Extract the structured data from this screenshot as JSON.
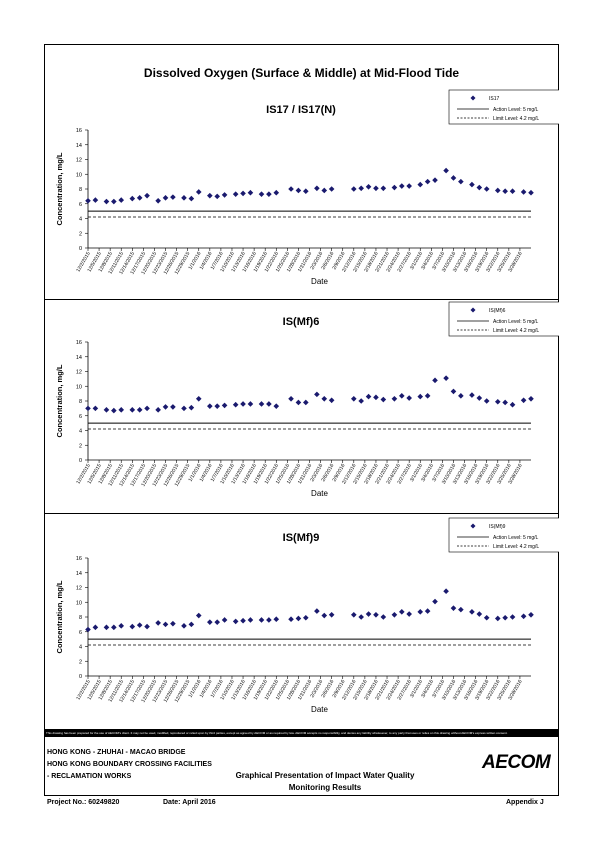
{
  "main_title": "Dissolved Oxygen (Surface & Middle) at Mid-Flood Tide",
  "disclaimer": "This drawing has been prepared for the use of AECOM's client. It may not be used, modified, reproduced or relied upon by third parties, except as agreed by AECOM or as required by law. AECOM accepts no responsibility, and denies any liability whatsoever, to any party that uses or relies on this drawing without AECOM's express written consent.",
  "footer": {
    "project_line1": "HONG KONG - ZHUHAI - MACAO BRIDGE",
    "project_line2": "HONG KONG BOUNDARY CROSSING FACILITIES",
    "project_line3": "- RECLAMATION WORKS",
    "doc_title_line1": "Graphical Presentation of Impact Water Quality",
    "doc_title_line2": "Monitoring Results",
    "project_no": "Project No.: 60249820",
    "date": "Date: April 2016",
    "appendix": "Appendix J",
    "logo": "AECOM"
  },
  "chart_data": [
    {
      "type": "scatter",
      "title": "IS17 / IS17(N)",
      "xlabel": "Date",
      "ylabel": "Concentration, mg/L",
      "ylim": [
        0,
        16
      ],
      "yticks": [
        0,
        2,
        4,
        6,
        8,
        10,
        12,
        14,
        16
      ],
      "xlim": [
        "2015-12-02",
        "2016-03-31"
      ],
      "xticks": [
        "12/2/2015",
        "12/5/2015",
        "12/8/2015",
        "12/11/2015",
        "12/14/2015",
        "12/17/2015",
        "12/20/2015",
        "12/23/2015",
        "12/26/2015",
        "12/29/2015",
        "1/1/2016",
        "1/4/2016",
        "1/7/2016",
        "1/10/2016",
        "1/13/2016",
        "1/16/2016",
        "1/19/2016",
        "1/22/2016",
        "1/25/2016",
        "1/28/2016",
        "1/31/2016",
        "2/3/2016",
        "2/6/2016",
        "2/9/2016",
        "2/12/2016",
        "2/15/2016",
        "2/18/2016",
        "2/21/2016",
        "2/24/2016",
        "2/27/2016",
        "3/1/2016",
        "3/4/2016",
        "3/7/2016",
        "3/10/2016",
        "3/13/2016",
        "3/16/2016",
        "3/19/2016",
        "3/22/2016",
        "3/25/2016",
        "3/28/2016"
      ],
      "series": [
        {
          "name": "IS17",
          "color": "#1a1a6e",
          "marker": "diamond",
          "x": [
            "2015-12-02",
            "2015-12-04",
            "2015-12-07",
            "2015-12-09",
            "2015-12-11",
            "2015-12-14",
            "2015-12-16",
            "2015-12-18",
            "2015-12-21",
            "2015-12-23",
            "2015-12-25",
            "2015-12-28",
            "2015-12-30",
            "2016-01-01",
            "2016-01-04",
            "2016-01-06",
            "2016-01-08",
            "2016-01-11",
            "2016-01-13",
            "2016-01-15",
            "2016-01-18",
            "2016-01-20",
            "2016-01-22",
            "2016-01-26",
            "2016-01-28",
            "2016-01-30",
            "2016-02-02",
            "2016-02-04",
            "2016-02-06",
            "2016-02-12",
            "2016-02-14",
            "2016-02-16",
            "2016-02-18",
            "2016-02-20",
            "2016-02-23",
            "2016-02-25",
            "2016-02-27",
            "2016-03-01",
            "2016-03-03",
            "2016-03-05",
            "2016-03-08",
            "2016-03-10",
            "2016-03-12",
            "2016-03-15",
            "2016-03-17",
            "2016-03-19",
            "2016-03-22",
            "2016-03-24",
            "2016-03-26",
            "2016-03-29",
            "2016-03-31"
          ],
          "y": [
            6.4,
            6.5,
            6.3,
            6.3,
            6.5,
            6.7,
            6.8,
            7.1,
            6.4,
            6.8,
            6.9,
            6.8,
            6.7,
            7.6,
            7.1,
            7.0,
            7.2,
            7.3,
            7.4,
            7.5,
            7.3,
            7.3,
            7.5,
            8.0,
            7.8,
            7.7,
            8.1,
            7.8,
            8.0,
            8.0,
            8.1,
            8.3,
            8.1,
            8.1,
            8.2,
            8.4,
            8.4,
            8.6,
            9.0,
            9.2,
            10.5,
            9.5,
            9.0,
            8.6,
            8.2,
            8.0,
            7.8,
            7.7,
            7.7,
            7.6,
            7.5
          ]
        }
      ],
      "lines": [
        {
          "name": "Action Level: 5 mg/L",
          "value": 5,
          "style": "solid"
        },
        {
          "name": "Limit Level: 4.2 mg/L",
          "value": 4.2,
          "style": "dashed"
        }
      ],
      "grid": false,
      "legend": "top-right"
    },
    {
      "type": "scatter",
      "title": "IS(Mf)6",
      "xlabel": "Date",
      "ylabel": "Concentration, mg/L",
      "ylim": [
        0,
        16
      ],
      "yticks": [
        0,
        2,
        4,
        6,
        8,
        10,
        12,
        14,
        16
      ],
      "xlim": [
        "2015-12-02",
        "2016-03-31"
      ],
      "xticks": [
        "12/2/2015",
        "12/5/2015",
        "12/8/2015",
        "12/11/2015",
        "12/14/2015",
        "12/17/2015",
        "12/20/2015",
        "12/23/2015",
        "12/26/2015",
        "12/29/2015",
        "1/1/2016",
        "1/4/2016",
        "1/7/2016",
        "1/10/2016",
        "1/13/2016",
        "1/16/2016",
        "1/19/2016",
        "1/22/2016",
        "1/25/2016",
        "1/28/2016",
        "1/31/2016",
        "2/3/2016",
        "2/6/2016",
        "2/9/2016",
        "2/12/2016",
        "2/15/2016",
        "2/18/2016",
        "2/21/2016",
        "2/24/2016",
        "2/27/2016",
        "3/1/2016",
        "3/4/2016",
        "3/7/2016",
        "3/10/2016",
        "3/13/2016",
        "3/16/2016",
        "3/19/2016",
        "3/22/2016",
        "3/25/2016",
        "3/28/2016"
      ],
      "series": [
        {
          "name": "IS(Mf)6",
          "color": "#1a1a6e",
          "marker": "diamond",
          "x": [
            "2015-12-02",
            "2015-12-04",
            "2015-12-07",
            "2015-12-09",
            "2015-12-11",
            "2015-12-14",
            "2015-12-16",
            "2015-12-18",
            "2015-12-21",
            "2015-12-23",
            "2015-12-25",
            "2015-12-28",
            "2015-12-30",
            "2016-01-01",
            "2016-01-04",
            "2016-01-06",
            "2016-01-08",
            "2016-01-11",
            "2016-01-13",
            "2016-01-15",
            "2016-01-18",
            "2016-01-20",
            "2016-01-22",
            "2016-01-26",
            "2016-01-28",
            "2016-01-30",
            "2016-02-02",
            "2016-02-04",
            "2016-02-06",
            "2016-02-12",
            "2016-02-14",
            "2016-02-16",
            "2016-02-18",
            "2016-02-20",
            "2016-02-23",
            "2016-02-25",
            "2016-02-27",
            "2016-03-01",
            "2016-03-03",
            "2016-03-05",
            "2016-03-08",
            "2016-03-10",
            "2016-03-12",
            "2016-03-15",
            "2016-03-17",
            "2016-03-19",
            "2016-03-22",
            "2016-03-24",
            "2016-03-26",
            "2016-03-29",
            "2016-03-31"
          ],
          "y": [
            7.0,
            7.0,
            6.8,
            6.7,
            6.8,
            6.8,
            6.8,
            7.0,
            6.8,
            7.2,
            7.2,
            7.0,
            7.1,
            8.3,
            7.3,
            7.3,
            7.4,
            7.5,
            7.6,
            7.6,
            7.6,
            7.6,
            7.3,
            8.3,
            7.8,
            7.8,
            8.9,
            8.3,
            8.1,
            8.3,
            8.0,
            8.6,
            8.5,
            8.2,
            8.3,
            8.7,
            8.4,
            8.6,
            8.7,
            10.8,
            11.1,
            9.3,
            8.7,
            8.8,
            8.4,
            8.0,
            7.9,
            7.8,
            7.5,
            8.1,
            8.3
          ]
        }
      ],
      "lines": [
        {
          "name": "Action Level: 5 mg/L",
          "value": 5,
          "style": "solid"
        },
        {
          "name": "Limit Level: 4.2 mg/L",
          "value": 4.2,
          "style": "dashed"
        }
      ],
      "grid": false,
      "legend": "top-right"
    },
    {
      "type": "scatter",
      "title": "IS(Mf)9",
      "xlabel": "Date",
      "ylabel": "Concentration, mg/L",
      "ylim": [
        0,
        16
      ],
      "yticks": [
        0,
        2,
        4,
        6,
        8,
        10,
        12,
        14,
        16
      ],
      "xlim": [
        "2015-12-02",
        "2016-03-31"
      ],
      "xticks": [
        "12/2/2015",
        "12/5/2015",
        "12/8/2015",
        "12/11/2015",
        "12/14/2015",
        "12/17/2015",
        "12/20/2015",
        "12/23/2015",
        "12/26/2015",
        "12/29/2015",
        "1/1/2016",
        "1/4/2016",
        "1/7/2016",
        "1/10/2016",
        "1/13/2016",
        "1/16/2016",
        "1/19/2016",
        "1/22/2016",
        "1/25/2016",
        "1/28/2016",
        "1/31/2016",
        "2/3/2016",
        "2/6/2016",
        "2/9/2016",
        "2/12/2016",
        "2/15/2016",
        "2/18/2016",
        "2/21/2016",
        "2/24/2016",
        "2/27/2016",
        "3/1/2016",
        "3/4/2016",
        "3/7/2016",
        "3/10/2016",
        "3/13/2016",
        "3/16/2016",
        "3/19/2016",
        "3/22/2016",
        "3/25/2016",
        "3/28/2016"
      ],
      "series": [
        {
          "name": "IS(Mf)9",
          "color": "#1a1a6e",
          "marker": "diamond",
          "x": [
            "2015-12-02",
            "2015-12-04",
            "2015-12-07",
            "2015-12-09",
            "2015-12-11",
            "2015-12-14",
            "2015-12-16",
            "2015-12-18",
            "2015-12-21",
            "2015-12-23",
            "2015-12-25",
            "2015-12-28",
            "2015-12-30",
            "2016-01-01",
            "2016-01-04",
            "2016-01-06",
            "2016-01-08",
            "2016-01-11",
            "2016-01-13",
            "2016-01-15",
            "2016-01-18",
            "2016-01-20",
            "2016-01-22",
            "2016-01-26",
            "2016-01-28",
            "2016-01-30",
            "2016-02-02",
            "2016-02-04",
            "2016-02-06",
            "2016-02-12",
            "2016-02-14",
            "2016-02-16",
            "2016-02-18",
            "2016-02-20",
            "2016-02-23",
            "2016-02-25",
            "2016-02-27",
            "2016-03-01",
            "2016-03-03",
            "2016-03-05",
            "2016-03-08",
            "2016-03-10",
            "2016-03-12",
            "2016-03-15",
            "2016-03-17",
            "2016-03-19",
            "2016-03-22",
            "2016-03-24",
            "2016-03-26",
            "2016-03-29",
            "2016-03-31"
          ],
          "y": [
            6.3,
            6.6,
            6.6,
            6.6,
            6.8,
            6.7,
            6.9,
            6.7,
            7.2,
            7.0,
            7.1,
            6.8,
            7.0,
            8.2,
            7.3,
            7.3,
            7.6,
            7.4,
            7.5,
            7.6,
            7.6,
            7.6,
            7.7,
            7.7,
            7.8,
            7.9,
            8.8,
            8.2,
            8.3,
            8.3,
            8.0,
            8.4,
            8.3,
            8.0,
            8.3,
            8.7,
            8.4,
            8.7,
            8.8,
            10.1,
            11.5,
            9.2,
            9.0,
            8.7,
            8.4,
            7.9,
            7.8,
            7.9,
            8.0,
            8.1,
            8.3
          ]
        }
      ],
      "lines": [
        {
          "name": "Action Level: 5 mg/L",
          "value": 5,
          "style": "solid"
        },
        {
          "name": "Limit Level: 4.2 mg/L",
          "value": 4.2,
          "style": "dashed"
        }
      ],
      "grid": false,
      "legend": "top-right"
    }
  ]
}
